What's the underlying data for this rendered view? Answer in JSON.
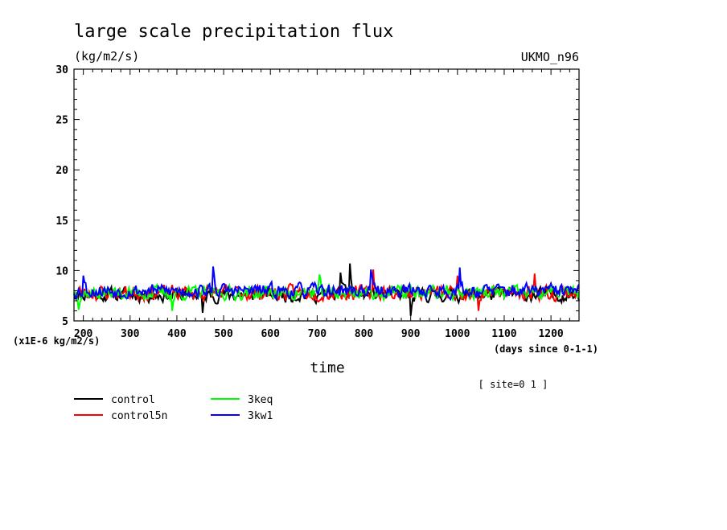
{
  "chart_data": {
    "type": "line",
    "title": "large scale precipitation flux",
    "units": "(kg/m2/s)",
    "model": "UKMO_n96",
    "y_scale_label": "(x1E-6 kg/m2/s)",
    "x_units_label": "(days since 0-1-1)",
    "xlabel": "time",
    "site_label": "[ site=0 1 ]",
    "xlim": [
      180,
      1260
    ],
    "ylim": [
      5,
      30
    ],
    "x_ticks": [
      200,
      300,
      400,
      500,
      600,
      700,
      800,
      900,
      1000,
      1100,
      1200
    ],
    "y_ticks": [
      5,
      10,
      15,
      20,
      25,
      30
    ],
    "grid": false,
    "legend_position": "bottom-left",
    "series": [
      {
        "name": "control",
        "color": "#000000",
        "mean": 7.6,
        "amp": 0.75,
        "seed": 11,
        "extremes": [
          [
            455,
            5.8
          ],
          [
            770,
            10.7
          ],
          [
            900,
            5.5
          ],
          [
            750,
            9.8
          ]
        ]
      },
      {
        "name": "control5n",
        "color": "#ff0000",
        "mean": 7.8,
        "amp": 0.8,
        "seed": 23,
        "extremes": [
          [
            820,
            10.1
          ],
          [
            1000,
            9.5
          ],
          [
            1045,
            6.0
          ],
          [
            1165,
            9.7
          ]
        ]
      },
      {
        "name": "3keq",
        "color": "#00ff00",
        "mean": 7.8,
        "amp": 0.75,
        "seed": 37,
        "extremes": [
          [
            190,
            6.1
          ],
          [
            390,
            6.0
          ],
          [
            705,
            9.6
          ]
        ]
      },
      {
        "name": "3kw1",
        "color": "#0000ff",
        "mean": 8.0,
        "amp": 0.75,
        "seed": 53,
        "extremes": [
          [
            200,
            9.5
          ],
          [
            478,
            10.4
          ],
          [
            815,
            10.1
          ],
          [
            1005,
            10.3
          ]
        ]
      }
    ]
  }
}
